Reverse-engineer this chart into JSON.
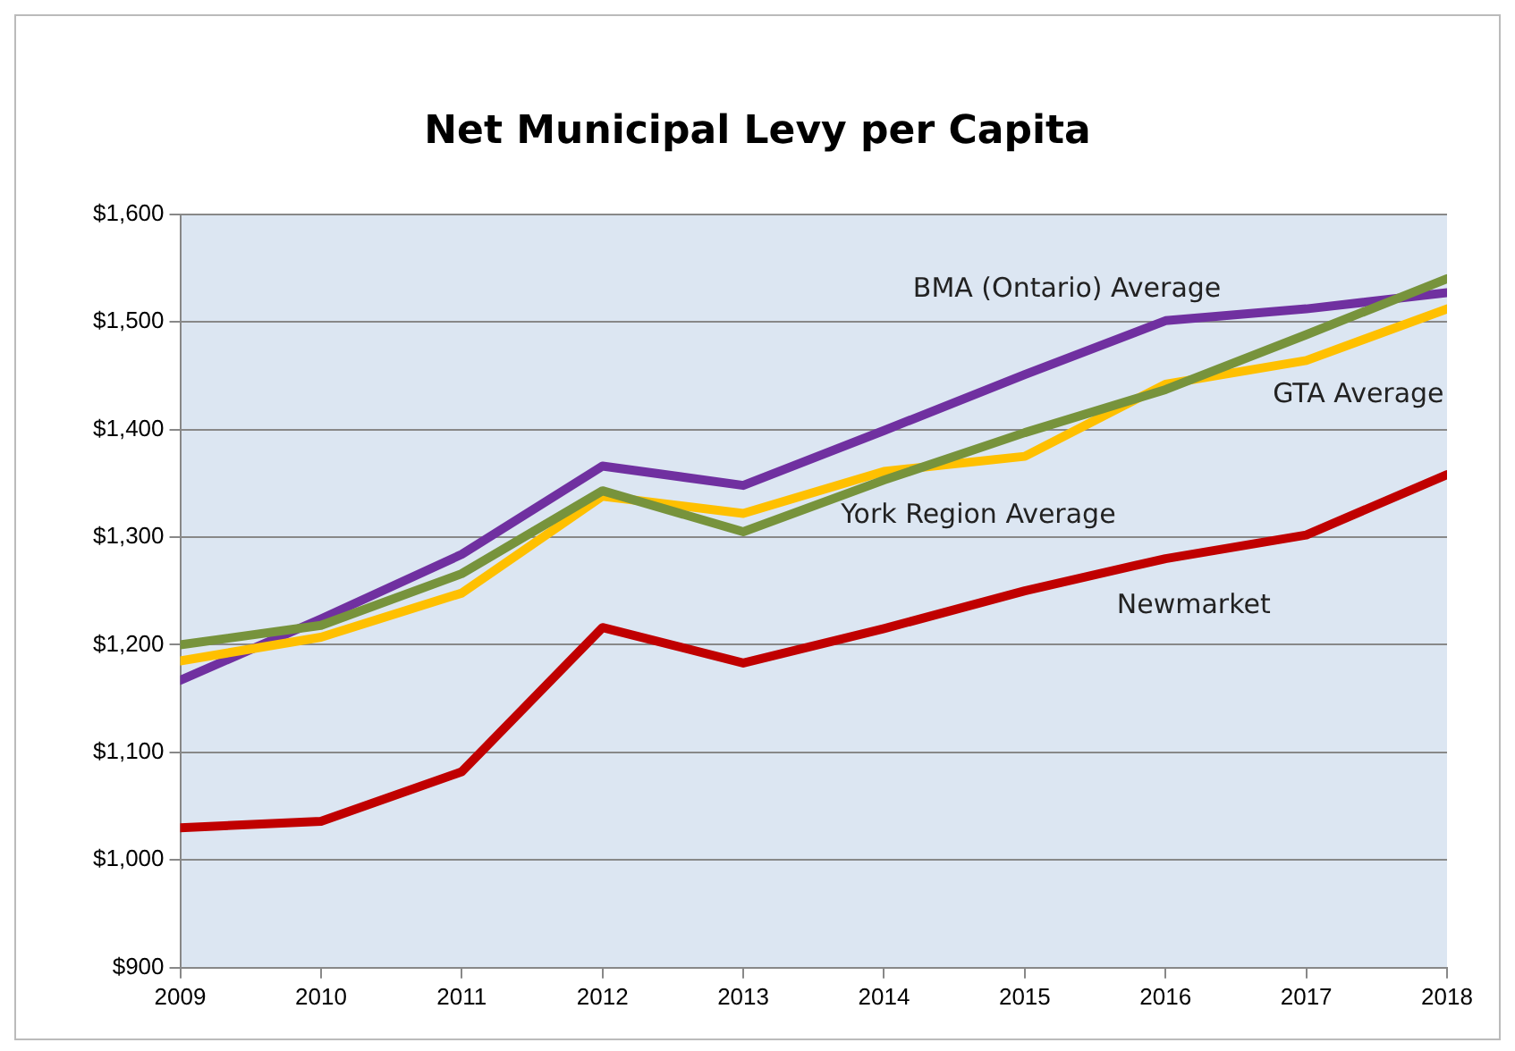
{
  "chart_data": {
    "type": "line",
    "title": "Net Municipal Levy per Capita",
    "x": [
      2009,
      2010,
      2011,
      2012,
      2013,
      2014,
      2015,
      2016,
      2017,
      2018
    ],
    "xlim": [
      2009,
      2018
    ],
    "xticks": [
      2009,
      2010,
      2011,
      2012,
      2013,
      2014,
      2015,
      2016,
      2017,
      2018
    ],
    "ylim": [
      900,
      1600
    ],
    "yticks": [
      {
        "value": 900,
        "label": "$900"
      },
      {
        "value": 1000,
        "label": "$1,000"
      },
      {
        "value": 1100,
        "label": "$1,100"
      },
      {
        "value": 1200,
        "label": "$1,200"
      },
      {
        "value": 1300,
        "label": "$1,300"
      },
      {
        "value": 1400,
        "label": "$1,400"
      },
      {
        "value": 1500,
        "label": "$1,500"
      },
      {
        "value": 1600,
        "label": "$1,600"
      }
    ],
    "grid": "y",
    "legend": false,
    "marker": "none",
    "line_style": "solid",
    "series": [
      {
        "name": "York Region Average",
        "color": "#77933c",
        "values": [
          1200,
          1218,
          1266,
          1343,
          1305,
          1353,
          1397,
          1437,
          1488,
          1540
        ]
      },
      {
        "name": "GTA Average",
        "color": "#ffc000",
        "values": [
          1185,
          1207,
          1248,
          1338,
          1322,
          1361,
          1375,
          1442,
          1464,
          1512
        ]
      },
      {
        "name": "BMA (Ontario) Average",
        "color": "#7030a0",
        "values": [
          1167,
          1224,
          1284,
          1366,
          1348,
          1399,
          1451,
          1501,
          1512,
          1527
        ]
      },
      {
        "name": "Newmarket",
        "color": "#c00000",
        "values": [
          1030,
          1036,
          1082,
          1216,
          1183,
          1215,
          1250,
          1280,
          1302,
          1358
        ]
      }
    ]
  }
}
